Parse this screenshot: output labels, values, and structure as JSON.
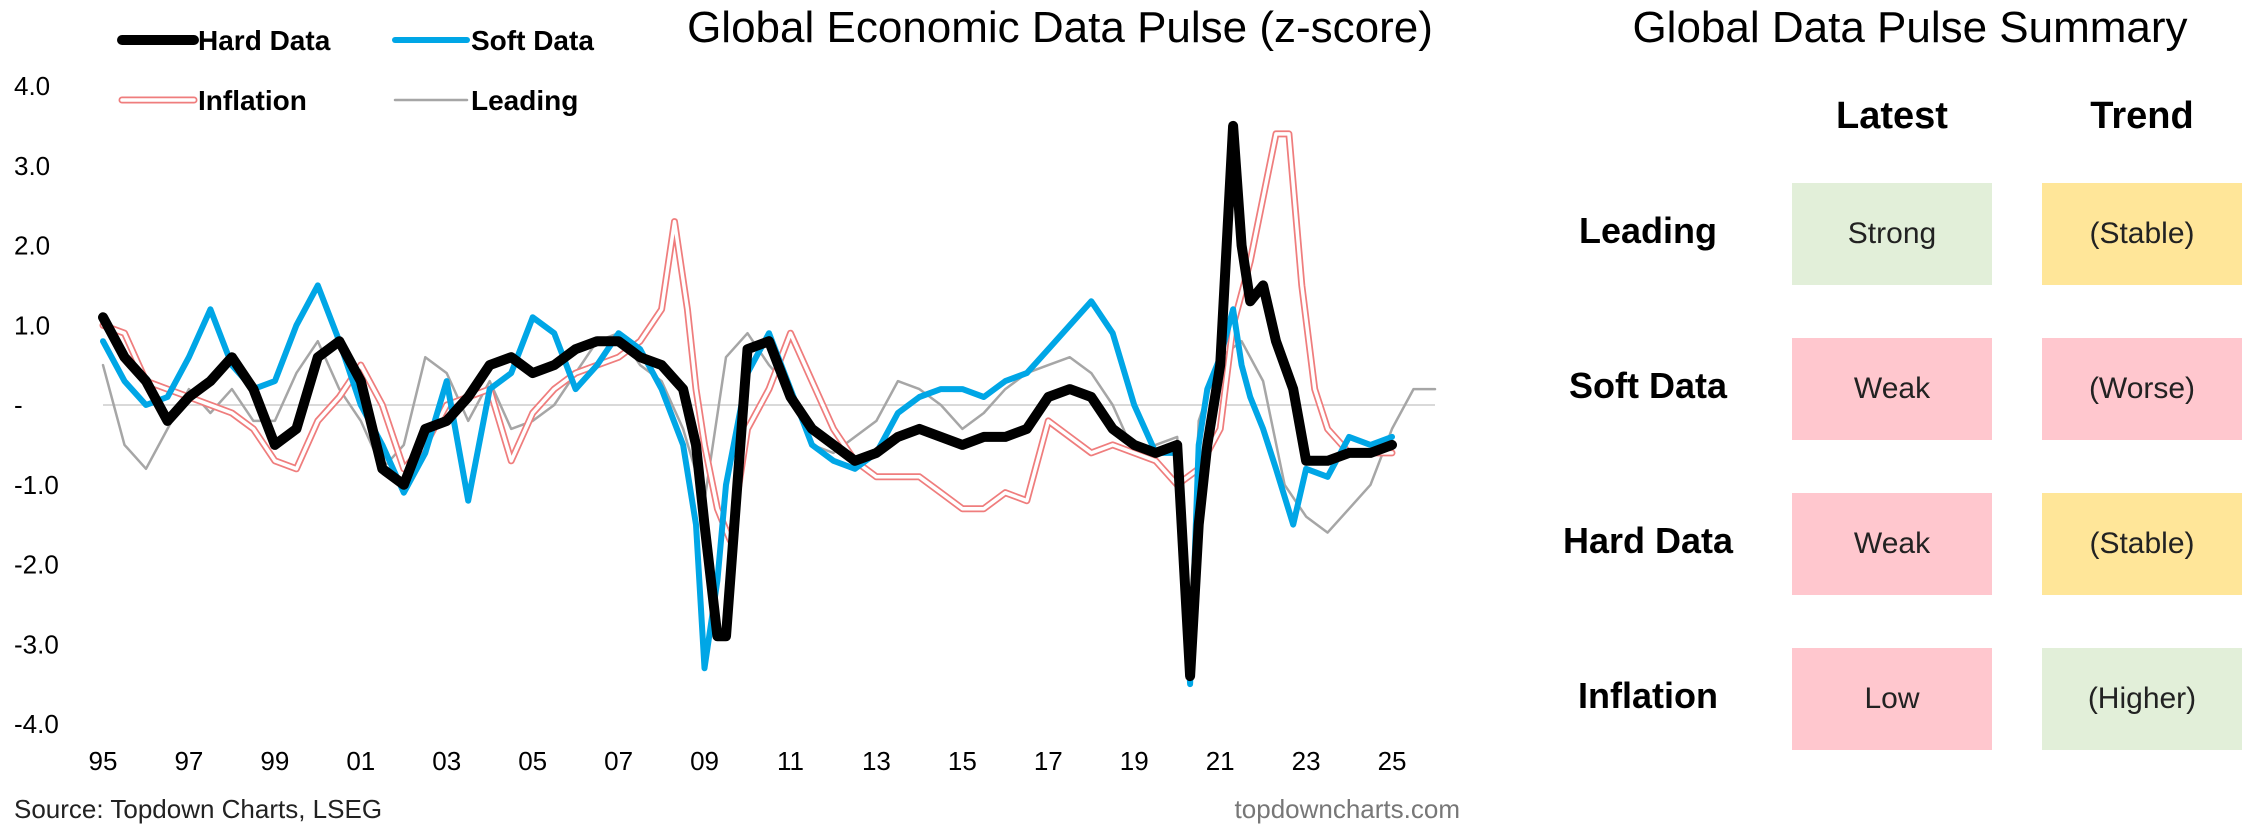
{
  "chart_title": "Global Economic Data Pulse (z-score)",
  "source": "Source: Topdown Charts, LSEG",
  "website": "topdowncharts.com",
  "colors": {
    "hard": "#000000",
    "soft": "#00a6e6",
    "inflation": "#ef7d7d",
    "leading": "#a6a6a6",
    "green": "#e2efd9",
    "red": "#ffc7ce",
    "yellow": "#ffe699"
  },
  "chart_data": {
    "type": "line",
    "title": "Global Economic Data Pulse (z-score)",
    "x_tick_labels": [
      "95",
      "97",
      "99",
      "01",
      "03",
      "05",
      "07",
      "09",
      "11",
      "13",
      "15",
      "17",
      "19",
      "21",
      "23",
      "25"
    ],
    "x_tick_values": [
      1995,
      1997,
      1999,
      2001,
      2003,
      2005,
      2007,
      2009,
      2011,
      2013,
      2015,
      2017,
      2019,
      2021,
      2023,
      2025
    ],
    "xlim": [
      1995,
      2026
    ],
    "y_tick_labels": [
      "4.0",
      "3.0",
      "2.0",
      "1.0",
      "-",
      "-1.0",
      "-2.0",
      "-3.0",
      "-4.0"
    ],
    "y_tick_values": [
      4,
      3,
      2,
      1,
      0,
      -1,
      -2,
      -3,
      -4
    ],
    "ylim": [
      -4,
      4
    ],
    "legend_position": "top-left",
    "series": [
      {
        "name": "Hard Data",
        "key": "hard",
        "style": "thick",
        "x": [
          1995,
          1995.5,
          1996,
          1996.5,
          1997,
          1997.5,
          1998,
          1998.5,
          1999,
          1999.5,
          2000,
          2000.5,
          2001,
          2001.5,
          2002,
          2002.5,
          2003,
          2003.5,
          2004,
          2004.5,
          2005,
          2005.5,
          2006,
          2006.5,
          2007,
          2007.5,
          2008,
          2008.5,
          2008.8,
          2009,
          2009.3,
          2009.5,
          2010,
          2010.5,
          2011,
          2011.5,
          2012,
          2012.5,
          2013,
          2013.5,
          2014,
          2014.5,
          2015,
          2015.5,
          2016,
          2016.5,
          2017,
          2017.5,
          2018,
          2018.5,
          2019,
          2019.5,
          2020,
          2020.3,
          2020.5,
          2020.7,
          2021,
          2021.3,
          2021.5,
          2021.7,
          2022,
          2022.3,
          2022.7,
          2023,
          2023.5,
          2024,
          2024.5,
          2025
        ],
        "y": [
          1.1,
          0.6,
          0.3,
          -0.2,
          0.1,
          0.3,
          0.6,
          0.2,
          -0.5,
          -0.3,
          0.6,
          0.8,
          0.3,
          -0.8,
          -1.0,
          -0.3,
          -0.2,
          0.1,
          0.5,
          0.6,
          0.4,
          0.5,
          0.7,
          0.8,
          0.8,
          0.6,
          0.5,
          0.2,
          -0.5,
          -1.5,
          -2.9,
          -2.9,
          0.7,
          0.8,
          0.1,
          -0.3,
          -0.5,
          -0.7,
          -0.6,
          -0.4,
          -0.3,
          -0.4,
          -0.5,
          -0.4,
          -0.4,
          -0.3,
          0.1,
          0.2,
          0.1,
          -0.3,
          -0.5,
          -0.6,
          -0.5,
          -3.4,
          -1.5,
          -0.5,
          0.5,
          3.5,
          2.0,
          1.3,
          1.5,
          0.8,
          0.2,
          -0.7,
          -0.7,
          -0.6,
          -0.6,
          -0.5
        ]
      },
      {
        "name": "Soft Data",
        "key": "soft",
        "style": "medium",
        "x": [
          1995,
          1995.5,
          1996,
          1996.5,
          1997,
          1997.5,
          1998,
          1998.5,
          1999,
          1999.5,
          2000,
          2000.5,
          2001,
          2001.5,
          2002,
          2002.5,
          2003,
          2003.5,
          2004,
          2004.5,
          2005,
          2005.5,
          2006,
          2006.5,
          2007,
          2007.5,
          2008,
          2008.5,
          2008.8,
          2009,
          2009.3,
          2009.5,
          2010,
          2010.5,
          2011,
          2011.5,
          2012,
          2012.5,
          2013,
          2013.5,
          2014,
          2014.5,
          2015,
          2015.5,
          2016,
          2016.5,
          2017,
          2017.5,
          2018,
          2018.5,
          2019,
          2019.5,
          2020,
          2020.3,
          2020.5,
          2020.7,
          2021,
          2021.3,
          2021.5,
          2021.7,
          2022,
          2022.3,
          2022.7,
          2023,
          2023.5,
          2024,
          2024.5,
          2025
        ],
        "y": [
          0.8,
          0.3,
          0.0,
          0.1,
          0.6,
          1.2,
          0.5,
          0.2,
          0.3,
          1.0,
          1.5,
          0.8,
          0.0,
          -0.5,
          -1.1,
          -0.6,
          0.3,
          -1.2,
          0.2,
          0.4,
          1.1,
          0.9,
          0.2,
          0.5,
          0.9,
          0.7,
          0.2,
          -0.5,
          -1.5,
          -3.3,
          -2.2,
          -1.0,
          0.4,
          0.9,
          0.2,
          -0.5,
          -0.7,
          -0.8,
          -0.6,
          -0.1,
          0.1,
          0.2,
          0.2,
          0.1,
          0.3,
          0.4,
          0.7,
          1.0,
          1.3,
          0.9,
          0.0,
          -0.6,
          -0.6,
          -3.5,
          -0.5,
          0.2,
          0.6,
          1.2,
          0.5,
          0.1,
          -0.3,
          -0.8,
          -1.5,
          -0.8,
          -0.9,
          -0.4,
          -0.5,
          -0.4
        ]
      },
      {
        "name": "Inflation",
        "key": "inflation",
        "style": "double",
        "x": [
          1995,
          1995.5,
          1996,
          1996.5,
          1997,
          1997.5,
          1998,
          1998.5,
          1999,
          1999.5,
          2000,
          2000.5,
          2001,
          2001.5,
          2002,
          2002.5,
          2003,
          2003.5,
          2004,
          2004.5,
          2005,
          2005.5,
          2006,
          2006.5,
          2007,
          2007.5,
          2008,
          2008.3,
          2008.6,
          2008.8,
          2009,
          2009.3,
          2009.6,
          2010,
          2010.5,
          2011,
          2011.5,
          2012,
          2012.5,
          2013,
          2013.5,
          2014,
          2014.5,
          2015,
          2015.5,
          2016,
          2016.5,
          2017,
          2017.5,
          2018,
          2018.5,
          2019,
          2019.5,
          2020,
          2020.5,
          2021,
          2021.3,
          2021.7,
          2022,
          2022.3,
          2022.6,
          2022.9,
          2023.2,
          2023.5,
          2024,
          2024.5,
          2025
        ],
        "y": [
          1.0,
          0.9,
          0.3,
          0.2,
          0.1,
          0.0,
          -0.1,
          -0.3,
          -0.7,
          -0.8,
          -0.2,
          0.1,
          0.5,
          0.0,
          -0.8,
          -0.5,
          0.0,
          0.1,
          0.2,
          -0.7,
          -0.1,
          0.2,
          0.4,
          0.5,
          0.6,
          0.8,
          1.2,
          2.3,
          1.2,
          0.2,
          -0.5,
          -1.3,
          -1.7,
          -0.3,
          0.2,
          0.9,
          0.3,
          -0.3,
          -0.7,
          -0.9,
          -0.9,
          -0.9,
          -1.1,
          -1.3,
          -1.3,
          -1.1,
          -1.2,
          -0.2,
          -0.4,
          -0.6,
          -0.5,
          -0.6,
          -0.7,
          -1.0,
          -0.8,
          -0.3,
          1.0,
          1.8,
          2.6,
          3.4,
          3.4,
          1.5,
          0.2,
          -0.3,
          -0.6,
          -0.6,
          -0.6
        ]
      },
      {
        "name": "Leading",
        "key": "leading",
        "style": "thin",
        "x": [
          1995,
          1995.5,
          1996,
          1996.5,
          1997,
          1997.5,
          1998,
          1998.5,
          1999,
          1999.5,
          2000,
          2000.5,
          2001,
          2001.5,
          2002,
          2002.5,
          2003,
          2003.5,
          2004,
          2004.5,
          2005,
          2005.5,
          2006,
          2006.5,
          2007,
          2007.5,
          2008,
          2008.5,
          2009,
          2009.5,
          2010,
          2010.5,
          2011,
          2011.5,
          2012,
          2012.5,
          2013,
          2013.5,
          2014,
          2014.5,
          2015,
          2015.5,
          2016,
          2016.5,
          2017,
          2017.5,
          2018,
          2018.5,
          2019,
          2019.5,
          2020,
          2020.3,
          2020.5,
          2021,
          2021.5,
          2022,
          2022.5,
          2023,
          2023.5,
          2024,
          2024.5,
          2025,
          2025.5,
          2026
        ],
        "y": [
          0.5,
          -0.5,
          -0.8,
          -0.3,
          0.2,
          -0.1,
          0.2,
          -0.2,
          -0.2,
          0.4,
          0.8,
          0.2,
          -0.2,
          -0.8,
          -0.5,
          0.6,
          0.4,
          -0.2,
          0.3,
          -0.3,
          -0.2,
          0.0,
          0.4,
          0.8,
          0.9,
          0.5,
          0.3,
          -0.3,
          -1.2,
          0.6,
          0.9,
          0.5,
          0.2,
          -0.5,
          -0.6,
          -0.4,
          -0.2,
          0.3,
          0.2,
          0.0,
          -0.3,
          -0.1,
          0.2,
          0.4,
          0.5,
          0.6,
          0.4,
          0.0,
          -0.6,
          -0.5,
          -0.4,
          -3.0,
          -0.2,
          0.6,
          0.8,
          0.3,
          -1.0,
          -1.4,
          -1.6,
          -1.3,
          -1.0,
          -0.3,
          0.2,
          0.2
        ]
      }
    ]
  },
  "summary": {
    "title": "Global Data Pulse Summary",
    "col_latest": "Latest",
    "col_trend": "Trend",
    "rows": [
      {
        "label": "Leading",
        "latest": "Strong",
        "latest_color": "green",
        "trend": "(Stable)",
        "trend_color": "yellow"
      },
      {
        "label": "Soft Data",
        "latest": "Weak",
        "latest_color": "red",
        "trend": "(Worse)",
        "trend_color": "red"
      },
      {
        "label": "Hard Data",
        "latest": "Weak",
        "latest_color": "red",
        "trend": "(Stable)",
        "trend_color": "yellow"
      },
      {
        "label": "Inflation",
        "latest": "Low",
        "latest_color": "red",
        "trend": "(Higher)",
        "trend_color": "green"
      }
    ]
  }
}
